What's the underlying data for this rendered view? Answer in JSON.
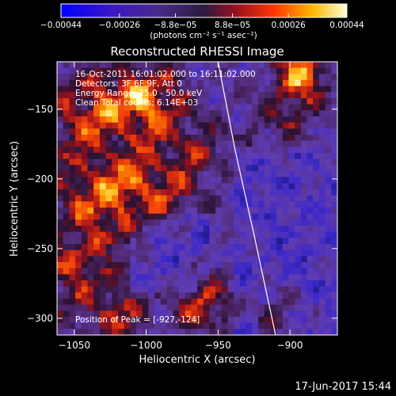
{
  "chart_data": {
    "type": "heatmap",
    "title": "Reconstructed RHESSI Image",
    "xlabel": "Heliocentric X (arcsec)",
    "ylabel": "Heliocentric Y (arcsec)",
    "xlim": [
      -1062,
      -867
    ],
    "ylim": [
      -312,
      -116
    ],
    "x_ticks": [
      -1050,
      -1000,
      -950,
      -900
    ],
    "y_ticks": [
      -300,
      -250,
      -200,
      -150
    ],
    "x_tick_labels": [
      "−1050",
      "−1000",
      "−950",
      "−900"
    ],
    "y_tick_labels": [
      "−300",
      "−250",
      "−200",
      "−150"
    ],
    "colorbar": {
      "range": [
        -0.00044,
        0.00044
      ],
      "ticks": [
        -0.00044,
        -0.00026,
        -8.8e-05,
        8.8e-05,
        0.00026,
        0.00044
      ],
      "tick_labels": [
        "−0.00044",
        "−0.00026",
        "−8.8e−05",
        "8.8e−05",
        "0.00026",
        "0.00044"
      ],
      "unit_label": "(photons cm⁻² s⁻¹ asec⁻²)"
    },
    "annotations": [
      "16-Oct-2011 16:01:02.000 to 16:11:02.000",
      "Detectors: 3F 6F 9F, Att 0",
      "Energy Range: 25.0 - 50.0 keV",
      "Clean    Total counts: 6.14E+03"
    ],
    "peak_label": "Position of Peak = [-927,-124]",
    "limb_curve": [
      [
        -950,
        -116
      ],
      [
        -938,
        -180
      ],
      [
        -925,
        -240
      ],
      [
        -910,
        -312
      ]
    ],
    "grid": false
  },
  "footer": {
    "timestamp": "17-Jun-2017 15:44"
  }
}
